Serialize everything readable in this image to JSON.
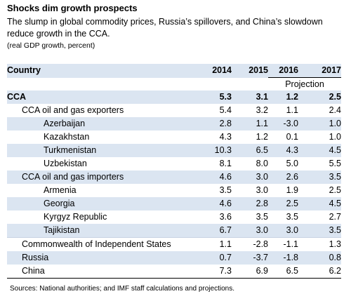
{
  "title": "Shocks dim growth prospects",
  "subtitle": "The slump in global commodity prices, Russia’s spillovers, and China’s slowdown reduce growth in the CCA.",
  "units": "(real GDP growth, percent)",
  "table": {
    "header": {
      "country": "Country",
      "y2014": "2014",
      "y2015": "2015",
      "y2016": "2016",
      "y2017": "2017"
    },
    "projection_label": "Projection",
    "rows": [
      {
        "name": "CCA",
        "level": 0,
        "style": "cca",
        "v2014": "5.3",
        "v2015": "3.1",
        "v2016": "1.2",
        "v2017": "2.5"
      },
      {
        "name": "CCA oil and gas exporters",
        "level": 1,
        "style": "plain",
        "v2014": "5.4",
        "v2015": "3.2",
        "v2016": "1.1",
        "v2017": "2.4"
      },
      {
        "name": "Azerbaijan",
        "level": 2,
        "style": "shade",
        "v2014": "2.8",
        "v2015": "1.1",
        "v2016": "-3.0",
        "v2017": "1.0"
      },
      {
        "name": "Kazakhstan",
        "level": 2,
        "style": "plain",
        "v2014": "4.3",
        "v2015": "1.2",
        "v2016": "0.1",
        "v2017": "1.0"
      },
      {
        "name": "Turkmenistan",
        "level": 2,
        "style": "shade",
        "v2014": "10.3",
        "v2015": "6.5",
        "v2016": "4.3",
        "v2017": "4.5"
      },
      {
        "name": "Uzbekistan",
        "level": 2,
        "style": "plain",
        "v2014": "8.1",
        "v2015": "8.0",
        "v2016": "5.0",
        "v2017": "5.5"
      },
      {
        "name": "CCA oil and gas importers",
        "level": 1,
        "style": "shade",
        "v2014": "4.6",
        "v2015": "3.0",
        "v2016": "2.6",
        "v2017": "3.5"
      },
      {
        "name": "Armenia",
        "level": 2,
        "style": "plain",
        "v2014": "3.5",
        "v2015": "3.0",
        "v2016": "1.9",
        "v2017": "2.5"
      },
      {
        "name": "Georgia",
        "level": 2,
        "style": "shade",
        "v2014": "4.6",
        "v2015": "2.8",
        "v2016": "2.5",
        "v2017": "4.5"
      },
      {
        "name": "Kyrgyz Republic",
        "level": 2,
        "style": "plain",
        "v2014": "3.6",
        "v2015": "3.5",
        "v2016": "3.5",
        "v2017": "2.7"
      },
      {
        "name": "Tajikistan",
        "level": 2,
        "style": "shade",
        "v2014": "6.7",
        "v2015": "3.0",
        "v2016": "3.0",
        "v2017": "3.5"
      },
      {
        "name": "Commonwealth of Independent States",
        "level": 1,
        "style": "plain",
        "v2014": "1.1",
        "v2015": "-2.8",
        "v2016": "-1.1",
        "v2017": "1.3"
      },
      {
        "name": "Russia",
        "level": 1,
        "style": "shade",
        "v2014": "0.7",
        "v2015": "-3.7",
        "v2016": "-1.8",
        "v2017": "0.8"
      },
      {
        "name": "China",
        "level": 1,
        "style": "plain",
        "v2014": "7.3",
        "v2015": "6.9",
        "v2016": "6.5",
        "v2017": "6.2"
      }
    ]
  },
  "source": "Sources: National authorities; and IMF staff calculations and projections."
}
